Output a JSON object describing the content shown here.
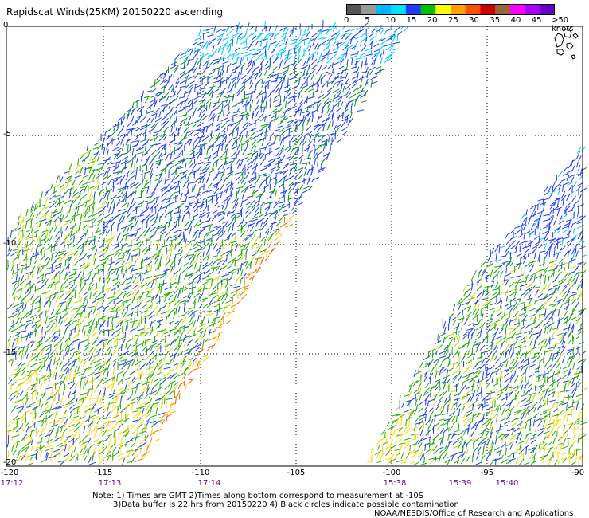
{
  "title": "Rapidscat Winds(25KM) 20150220 ascending",
  "colorbar": {
    "colors": [
      "#555555",
      "#999999",
      "#00b8ff",
      "#00e0ff",
      "#1e3cff",
      "#00c000",
      "#ffff00",
      "#ffa000",
      "#ff5000",
      "#cc0000",
      "#996633",
      "#ff00ff",
      "#aa00ff",
      "#6600cc"
    ],
    "labels": [
      "0",
      "5",
      "10",
      "15",
      "20",
      "25",
      "30",
      "35",
      "40",
      "45",
      ">50 knots"
    ]
  },
  "axes": {
    "lat_labels": [
      "0",
      "-5",
      "-10",
      "-15",
      "-20"
    ],
    "lon_labels": [
      "-120",
      "-115",
      "-110",
      "-105",
      "-100",
      "-95",
      "-90"
    ],
    "time_labels": [
      "17:12",
      "17:13",
      "17:14",
      "15:38",
      "15:39",
      "15:40"
    ]
  },
  "notes": {
    "line1": "Note: 1) Times are GMT 2)Times along bottom correspond to measurement at -10S",
    "line2": "3)Data buffer is 22 hrs from 20150220 4) Black circles indicate possible contamination",
    "line3": "NOAA/NESDIS/Office of Research and Applications"
  }
}
